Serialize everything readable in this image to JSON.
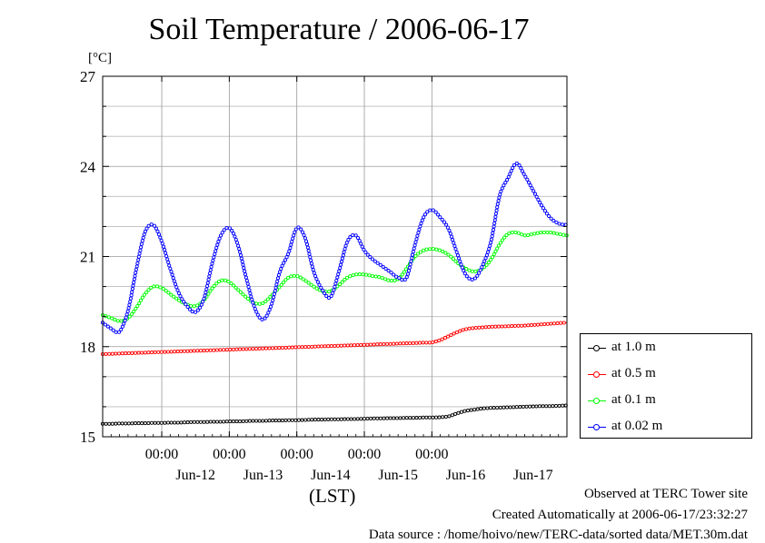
{
  "title": "Soil Temperature / 2006-06-17",
  "unit": "[°C]",
  "xlabel": "(LST)",
  "footer": {
    "observed": "Observed at TERC Tower site",
    "created": "Created Automatically at 2006-06-17/23:32:27",
    "source": "Data source : /home/hoivo/new/TERC-data/sorted  data/MET.30m.dat"
  },
  "chart_data": {
    "type": "line",
    "title": "Soil Temperature / 2006-06-17",
    "xlabel": "(LST)",
    "ylabel": "[°C]",
    "ylim": [
      15,
      27
    ],
    "yticks": [
      15,
      18,
      21,
      24,
      27
    ],
    "xlim": [
      "2006-06-11 03:00",
      "2006-06-17 24:00"
    ],
    "x_time_ticks": [
      "00:00",
      "00:00",
      "00:00",
      "00:00",
      "00:00"
    ],
    "x_date_ticks": [
      "Jun-12",
      "Jun-13",
      "Jun-14",
      "Jun-15",
      "Jun-16",
      "Jun-17"
    ],
    "grid": true,
    "legend_position": "right",
    "x": [
      "06-11 03:00",
      "06-11 06:00",
      "06-11 09:00",
      "06-11 12:00",
      "06-11 15:00",
      "06-11 18:00",
      "06-11 21:00",
      "06-12 00:00",
      "06-12 03:00",
      "06-12 06:00",
      "06-12 09:00",
      "06-12 12:00",
      "06-12 15:00",
      "06-12 18:00",
      "06-12 21:00",
      "06-13 00:00",
      "06-13 03:00",
      "06-13 06:00",
      "06-13 09:00",
      "06-13 12:00",
      "06-13 15:00",
      "06-13 18:00",
      "06-13 21:00",
      "06-14 00:00",
      "06-14 03:00",
      "06-14 06:00",
      "06-14 09:00",
      "06-14 12:00",
      "06-14 15:00",
      "06-14 18:00",
      "06-14 21:00",
      "06-15 00:00",
      "06-15 03:00",
      "06-15 06:00",
      "06-15 09:00",
      "06-15 12:00",
      "06-15 15:00",
      "06-15 18:00",
      "06-15 21:00",
      "06-16 00:00",
      "06-16 03:00",
      "06-16 06:00",
      "06-16 09:00",
      "06-16 12:00",
      "06-16 15:00",
      "06-16 18:00",
      "06-16 21:00",
      "06-17 00:00",
      "06-17 03:00",
      "06-17 06:00",
      "06-17 09:00",
      "06-17 12:00",
      "06-17 15:00",
      "06-17 18:00",
      "06-17 21:00",
      "06-17 24:00"
    ],
    "series": [
      {
        "name": "at 1.0 m",
        "color": "#000000",
        "values": [
          15.43,
          15.43,
          15.44,
          15.44,
          15.45,
          15.45,
          15.46,
          15.46,
          15.47,
          15.47,
          15.48,
          15.49,
          15.49,
          15.5,
          15.5,
          15.51,
          15.51,
          15.52,
          15.53,
          15.53,
          15.54,
          15.54,
          15.55,
          15.55,
          15.56,
          15.57,
          15.57,
          15.58,
          15.58,
          15.59,
          15.59,
          15.6,
          15.61,
          15.61,
          15.62,
          15.62,
          15.63,
          15.63,
          15.64,
          15.64,
          15.65,
          15.68,
          15.78,
          15.86,
          15.9,
          15.94,
          15.96,
          15.97,
          15.98,
          15.99,
          16.0,
          16.01,
          16.02,
          16.02,
          16.03,
          16.04
        ]
      },
      {
        "name": "at 0.5 m",
        "color": "#ff0000",
        "values": [
          17.75,
          17.76,
          17.77,
          17.78,
          17.79,
          17.8,
          17.81,
          17.82,
          17.83,
          17.84,
          17.85,
          17.86,
          17.87,
          17.88,
          17.89,
          17.9,
          17.91,
          17.92,
          17.93,
          17.94,
          17.95,
          17.96,
          17.97,
          17.98,
          17.99,
          18.0,
          18.01,
          18.02,
          18.03,
          18.04,
          18.05,
          18.06,
          18.07,
          18.08,
          18.09,
          18.1,
          18.11,
          18.12,
          18.13,
          18.14,
          18.22,
          18.35,
          18.48,
          18.58,
          18.62,
          18.64,
          18.66,
          18.67,
          18.68,
          18.69,
          18.7,
          18.72,
          18.74,
          18.76,
          18.78,
          18.8
        ]
      },
      {
        "name": "at 0.1 m",
        "color": "#00ff00",
        "values": [
          19.05,
          18.95,
          18.85,
          18.95,
          19.3,
          19.75,
          20.0,
          19.95,
          19.75,
          19.55,
          19.4,
          19.35,
          19.55,
          19.95,
          20.2,
          20.15,
          19.9,
          19.65,
          19.45,
          19.45,
          19.7,
          20.0,
          20.3,
          20.35,
          20.2,
          20.0,
          19.85,
          19.85,
          20.05,
          20.3,
          20.4,
          20.4,
          20.35,
          20.3,
          20.2,
          20.25,
          20.6,
          21.0,
          21.2,
          21.25,
          21.2,
          21.05,
          20.8,
          20.6,
          20.5,
          20.6,
          20.9,
          21.4,
          21.75,
          21.8,
          21.7,
          21.75,
          21.8,
          21.8,
          21.75,
          21.7
        ]
      },
      {
        "name": "at 0.02 m",
        "color": "#0000ff",
        "values": [
          18.8,
          18.6,
          18.5,
          19.2,
          20.6,
          21.8,
          22.05,
          21.5,
          20.6,
          19.8,
          19.35,
          19.15,
          19.6,
          20.8,
          21.7,
          21.95,
          21.4,
          20.3,
          19.3,
          18.9,
          19.4,
          20.5,
          21.1,
          21.95,
          21.6,
          20.5,
          19.9,
          19.65,
          20.5,
          21.5,
          21.7,
          21.2,
          20.9,
          20.7,
          20.5,
          20.3,
          20.3,
          21.4,
          22.3,
          22.55,
          22.3,
          21.9,
          21.1,
          20.4,
          20.25,
          20.7,
          21.5,
          23.0,
          23.6,
          24.1,
          23.7,
          23.2,
          22.7,
          22.3,
          22.1,
          22.05
        ]
      }
    ]
  }
}
